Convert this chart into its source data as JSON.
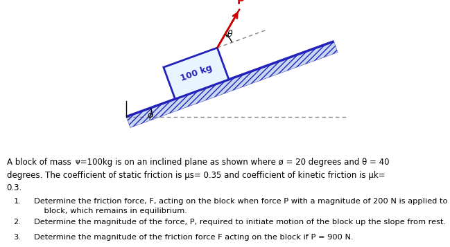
{
  "bg_color": "#ddeef5",
  "phi_deg": 20,
  "theta_deg": 40,
  "slope_color": "#2222bb",
  "block_face": "#e8f4ff",
  "block_edge": "#2222bb",
  "hatch_face": "#c8d8f0",
  "arrow_color": "#cc0000",
  "arc_color": "#000000",
  "dash_color": "#888888",
  "para_line1": "A block of mass $m$=100kg is on an inclined plane as shown where $\\o$ = 20 degrees and $\\theta$ = 40",
  "para_line2": "degrees. The coefficient of static friction is $\\mu_s$= 0.35 and coefficient of kinetic friction is $\\mu_k$=",
  "para_line3": "0.3.",
  "item1": "Determine the friction force, F, acting on the block when force P with a magnitude of 200 N is applied to the",
  "item1b": "block, which remains in equilibrium.",
  "item2": "Determine the magnitude of the force, P, required to initiate motion of the block up the slope from rest.",
  "item3": "Determine the magnitude of the friction force F acting on the block if P = 900 N."
}
